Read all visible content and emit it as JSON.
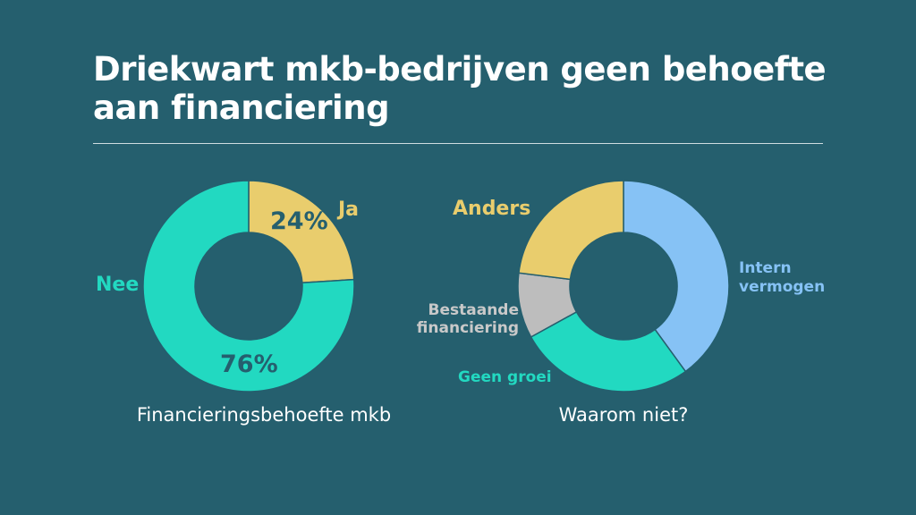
{
  "title": "Driekwart mkb-bedrijven geen behoefte aan financiering",
  "chart_data": [
    {
      "type": "donut",
      "title": "Financieringsbehoefte mkb",
      "categories": [
        "Ja",
        "Nee"
      ],
      "values": [
        24,
        76
      ],
      "value_labels": [
        "24%",
        "76%"
      ],
      "colors": [
        "#e9cd6d",
        "#22d9c1"
      ]
    },
    {
      "type": "donut",
      "title": "Waarom niet?",
      "categories": [
        "Intern vermogen",
        "Geen groei",
        "Bestaande financiering",
        "Anders"
      ],
      "values": [
        40,
        27,
        10,
        23
      ],
      "colors": [
        "#86c2f5",
        "#22d9c1",
        "#bdbdbd",
        "#e9cd6d"
      ]
    }
  ]
}
